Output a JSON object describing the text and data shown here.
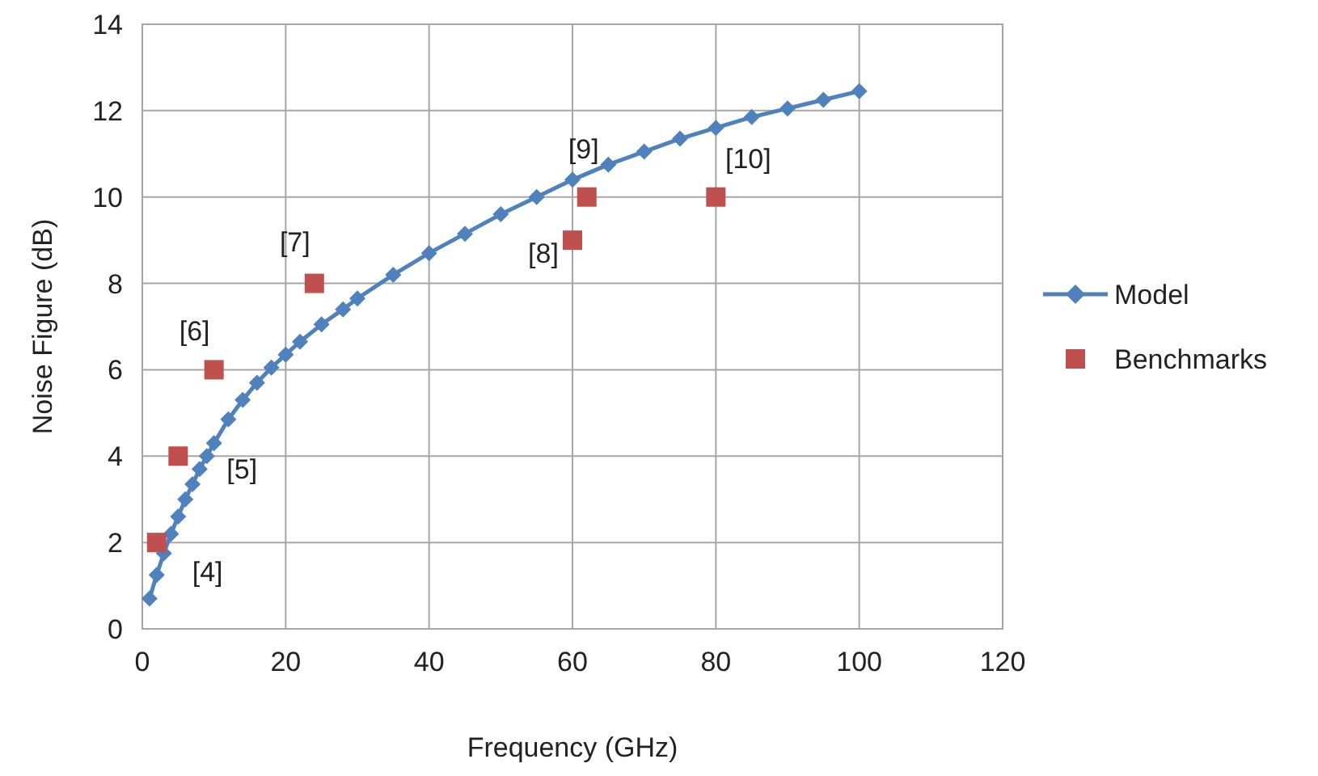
{
  "chart_data": {
    "type": "line",
    "xlabel": "Frequency (GHz)",
    "ylabel": "Noise Figure (dB)",
    "xlim": [
      0,
      120
    ],
    "xticks": [
      0,
      20,
      40,
      60,
      80,
      100,
      120
    ],
    "ylim": [
      0,
      14
    ],
    "yticks": [
      0,
      2,
      4,
      6,
      8,
      10,
      12,
      14
    ],
    "grid": true,
    "legend": "right",
    "series": [
      {
        "name": "Model",
        "color": "#4f81bd",
        "marker": "diamond",
        "x": [
          1,
          2,
          3,
          4,
          5,
          6,
          7,
          8,
          9,
          10,
          12,
          14,
          16,
          18,
          20,
          22,
          25,
          28,
          30,
          35,
          40,
          45,
          50,
          55,
          60,
          65,
          70,
          75,
          80,
          85,
          90,
          95,
          100
        ],
        "values": [
          0.7,
          1.25,
          1.75,
          2.2,
          2.6,
          3.0,
          3.35,
          3.7,
          4.0,
          4.3,
          4.85,
          5.3,
          5.7,
          6.05,
          6.35,
          6.65,
          7.05,
          7.4,
          7.65,
          8.2,
          8.7,
          9.15,
          9.6,
          10.0,
          10.4,
          10.75,
          11.05,
          11.35,
          11.6,
          11.85,
          12.05,
          12.25,
          12.45
        ]
      },
      {
        "name": "Benchmarks",
        "type": "scatter",
        "color": "#c0504d",
        "marker": "square",
        "x": [
          2,
          5,
          10,
          24,
          60,
          62,
          80
        ],
        "values": [
          2,
          4,
          6,
          8,
          9,
          10,
          10
        ]
      }
    ],
    "annotations": [
      {
        "text": "[4]",
        "x": 2,
        "y": 2
      },
      {
        "text": "[5]",
        "x": 5,
        "y": 4
      },
      {
        "text": "[6]",
        "x": 10,
        "y": 6
      },
      {
        "text": "[7]",
        "x": 24,
        "y": 8
      },
      {
        "text": "[8]",
        "x": 60,
        "y": 9
      },
      {
        "text": "[9]",
        "x": 62,
        "y": 10
      },
      {
        "text": "[10]",
        "x": 80,
        "y": 10
      }
    ]
  }
}
